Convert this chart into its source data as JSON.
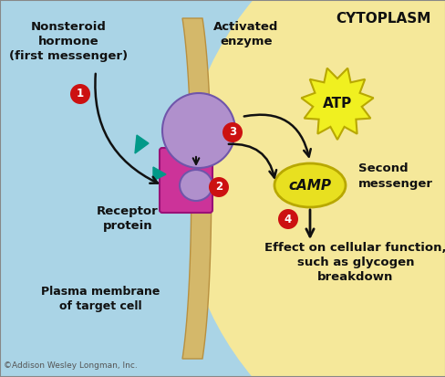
{
  "bg_left_color": "#aad4e6",
  "bg_right_color": "#f5e89a",
  "membrane_color": "#d4b86a",
  "membrane_edge_color": "#b89040",
  "receptor_color": "#cc3399",
  "protein_large_color": "#b090cc",
  "protein_small_color": "#b090cc",
  "atp_color": "#f0f020",
  "camp_color": "#e8e020",
  "number_circle_color": "#cc1111",
  "number_text_color": "#ffffff",
  "arrow_color": "#111111",
  "teal_color": "#009988",
  "title_cytoplasm": "CYTOPLASM",
  "label_nonsteroid": "Nonsteroid\nhormone\n(first messenger)",
  "label_activated": "Activated\nenzyme",
  "label_atp": "ATP",
  "label_camp": "cAMP",
  "label_second": "Second\nmessenger",
  "label_receptor": "Receptor\nprotein",
  "label_plasma": "Plasma membrane\nof target cell",
  "label_effect": "Effect on cellular function,\nsuch as glycogen\nbreakdown",
  "label_copyright": "©Addison Wesley Longman, Inc.",
  "figsize": [
    4.89,
    4.13
  ],
  "dpi": 100
}
